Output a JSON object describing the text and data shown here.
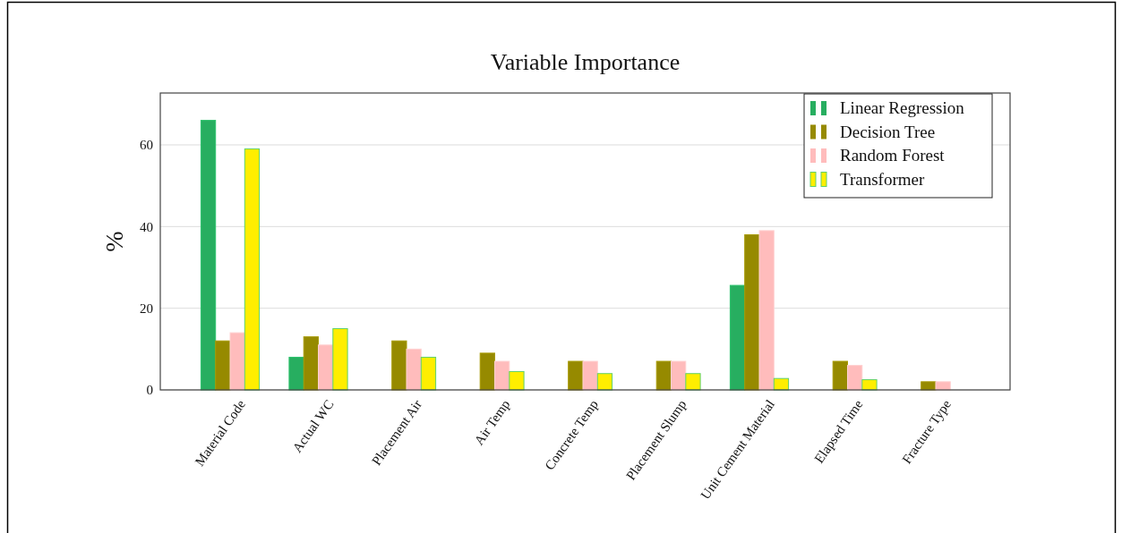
{
  "chart_data": {
    "type": "bar",
    "title": "Variable Importance",
    "ylabel": "%",
    "categories": [
      "Material Code",
      "Actual WC",
      "Placement Air",
      "Air Temp",
      "Concrete Temp",
      "Placement Slump",
      "Unit Cement Material",
      "Elapsed Time",
      "Fracture Type"
    ],
    "series": [
      {
        "name": "Linear Regression",
        "color": "#27ae60",
        "values": [
          66,
          8,
          0,
          0,
          0,
          0,
          25.6,
          0,
          0
        ]
      },
      {
        "name": "Decision Tree",
        "color": "#968a00",
        "values": [
          12,
          13,
          12,
          9,
          7,
          7,
          38,
          7,
          2
        ]
      },
      {
        "name": "Random Forest",
        "color": "#ffbcbc",
        "values": [
          14,
          11,
          10,
          7,
          7,
          7,
          39,
          6,
          2
        ]
      },
      {
        "name": "Transformer",
        "color": "#ffee00",
        "values": [
          59,
          15,
          8,
          4.5,
          4,
          4,
          2.8,
          2.5,
          0
        ]
      }
    ],
    "ylim": [
      0,
      72.7
    ],
    "yticks": [
      0,
      20,
      40,
      60
    ],
    "grid": "y",
    "legend": "top right"
  }
}
